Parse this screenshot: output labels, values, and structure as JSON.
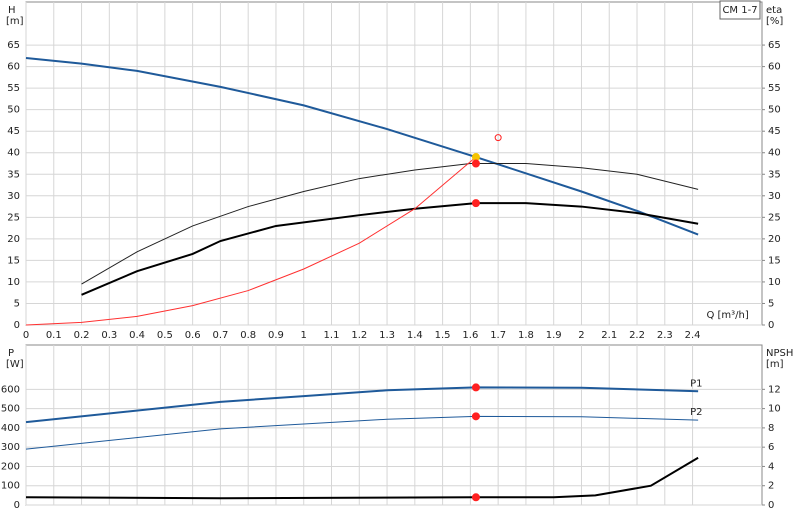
{
  "chart_data": [
    {
      "type": "line",
      "title": "CM 1-7",
      "ylabel": "H",
      "ylabel_unit": "[m]",
      "y2label": "eta",
      "y2label_unit": "[%]",
      "xlabel": "Q [m³/h]",
      "xlim": [
        0,
        2.65
      ],
      "xticks": [
        0,
        0.1,
        0.2,
        0.3,
        0.4,
        0.5,
        0.6,
        0.7,
        0.8,
        0.9,
        1,
        1.1,
        1.2,
        1.3,
        1.4,
        1.5,
        1.6,
        1.7,
        1.8,
        1.9,
        2,
        2.1,
        2.2,
        2.3,
        2.4
      ],
      "ylim": [
        0,
        75
      ],
      "yticks": [
        0,
        5,
        10,
        15,
        20,
        25,
        30,
        35,
        40,
        45,
        50,
        55,
        60,
        65
      ],
      "y2lim": [
        0,
        75
      ],
      "y2ticks": [
        0,
        5,
        10,
        15,
        20,
        25,
        30,
        35,
        40,
        45,
        50,
        55,
        60,
        65
      ],
      "grid": true,
      "series": [
        {
          "color": "#1f5a9a",
          "width": 2,
          "x": [
            0,
            0.2,
            0.4,
            0.7,
            1.0,
            1.3,
            1.62,
            2.0,
            2.2,
            2.42
          ],
          "values": [
            62,
            60.7,
            59,
            55.3,
            51,
            45.5,
            39,
            31,
            26.5,
            21
          ]
        },
        {
          "color": "#222222",
          "width": 1,
          "x": [
            0.2,
            0.4,
            0.6,
            0.8,
            1.0,
            1.2,
            1.4,
            1.6,
            1.8,
            2.0,
            2.2,
            2.42
          ],
          "values": [
            9.5,
            17,
            23,
            27.5,
            31,
            34,
            36,
            37.5,
            37.5,
            36.5,
            35,
            31.5
          ]
        },
        {
          "color": "#000000",
          "width": 2,
          "x": [
            0.2,
            0.4,
            0.6,
            0.7,
            0.9,
            1.2,
            1.4,
            1.62,
            1.8,
            2.0,
            2.2,
            2.42
          ],
          "values": [
            7,
            12.5,
            16.5,
            19.5,
            23,
            25.5,
            27,
            28.3,
            28.3,
            27.5,
            26,
            23.5
          ]
        },
        {
          "color": "#ff3030",
          "width": 1,
          "x": [
            0,
            0.2,
            0.4,
            0.6,
            0.8,
            1.0,
            1.2,
            1.4,
            1.62
          ],
          "values": [
            0,
            0.6,
            2,
            4.5,
            8,
            13,
            19,
            27,
            39
          ]
        }
      ],
      "points": [
        {
          "x": 1.62,
          "y": 39,
          "color": "#f5c400"
        },
        {
          "x": 1.62,
          "y": 37.5,
          "color": "#ff2020"
        },
        {
          "x": 1.62,
          "y": 28.3,
          "color": "#ff2020"
        },
        {
          "x": 1.7,
          "y": 43.5,
          "color": "#ff2020",
          "hollow": true
        }
      ]
    },
    {
      "type": "line",
      "ylabel": "P",
      "ylabel_unit": "[W]",
      "y2label": "NPSH",
      "y2label_unit": "[m]",
      "xlim": [
        0,
        2.65
      ],
      "ylim": [
        0,
        830
      ],
      "yticks": [
        0,
        100,
        200,
        300,
        400,
        500,
        600
      ],
      "y2lim": [
        0,
        16.6
      ],
      "y2ticks": [
        0,
        2,
        4,
        6,
        8,
        10,
        12
      ],
      "grid": true,
      "series": [
        {
          "name": "P1",
          "color": "#1f5a9a",
          "width": 2,
          "x": [
            0,
            0.7,
            1.0,
            1.3,
            1.62,
            2.0,
            2.42
          ],
          "values": [
            430,
            535,
            565,
            595,
            610,
            608,
            590
          ]
        },
        {
          "name": "P2",
          "color": "#1f5a9a",
          "width": 1,
          "x": [
            0,
            0.7,
            1.0,
            1.3,
            1.62,
            2.0,
            2.42
          ],
          "values": [
            290,
            395,
            420,
            445,
            460,
            458,
            440
          ]
        },
        {
          "color": "#000000",
          "width": 2,
          "axis": "y2",
          "x": [
            0,
            0.7,
            1.62,
            1.9,
            2.05,
            2.25,
            2.42
          ],
          "values": [
            0.8,
            0.7,
            0.8,
            0.8,
            1.0,
            2.0,
            4.9
          ]
        }
      ],
      "points": [
        {
          "x": 1.62,
          "y": 610,
          "color": "#ff2020"
        },
        {
          "x": 1.62,
          "y": 460,
          "color": "#ff2020"
        },
        {
          "x": 1.62,
          "y": 0.8,
          "color": "#ff2020",
          "axis": "y2"
        }
      ]
    }
  ]
}
